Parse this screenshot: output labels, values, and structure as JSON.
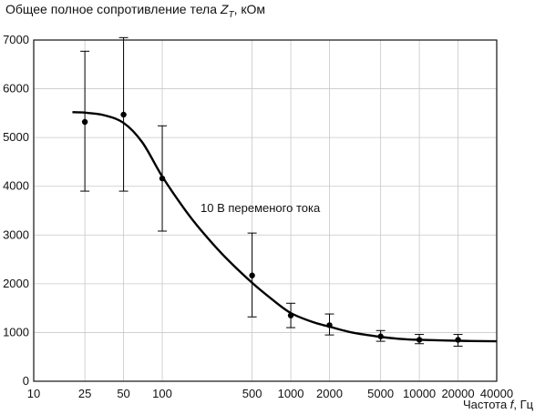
{
  "chart_data": {
    "type": "scatter",
    "title": "",
    "ylabel": "Общее полное сопротивление тела Z_T, кОм",
    "ylabel_parts": {
      "before": "Общее полное сопротивление тела ",
      "symbol": "Z",
      "subscript": "T",
      "after": ", кОм"
    },
    "xlabel": "Частота f, Гц",
    "xlabel_parts": {
      "before": "Частота ",
      "symbol": "f",
      "after": ", Гц"
    },
    "annotation": "10 В переменого тока",
    "x_scale": "log",
    "xlim": [
      10,
      40000
    ],
    "ylim": [
      0,
      7000
    ],
    "x_tick_labels": [
      "10",
      "25",
      "50",
      "100",
      "500",
      "1000",
      "2000",
      "5000",
      "10000",
      "20000",
      "40000"
    ],
    "y_tick_labels": [
      "0",
      "1000",
      "2000",
      "3000",
      "4000",
      "5000",
      "6000",
      "7000"
    ],
    "grid": true,
    "series": [
      {
        "kind": "points_with_error_bars",
        "x": [
          25,
          50,
          100,
          500,
          1000,
          2000,
          5000,
          10000,
          20000
        ],
        "y": [
          5320,
          5470,
          4160,
          2170,
          1350,
          1150,
          920,
          850,
          850
        ],
        "y_low": [
          3900,
          3900,
          3080,
          1320,
          1100,
          950,
          820,
          770,
          720
        ],
        "y_high": [
          6770,
          7050,
          5240,
          3040,
          1600,
          1380,
          1040,
          960,
          960
        ]
      },
      {
        "kind": "fitted_curve",
        "x": [
          20,
          25,
          35,
          50,
          70,
          100,
          150,
          200,
          300,
          500,
          700,
          1000,
          1500,
          2000,
          3000,
          5000,
          7000,
          10000,
          20000,
          40000
        ],
        "y": [
          5520,
          5510,
          5460,
          5300,
          4900,
          4200,
          3520,
          3100,
          2580,
          2020,
          1700,
          1400,
          1210,
          1120,
          1000,
          910,
          870,
          850,
          830,
          820
        ]
      }
    ]
  }
}
